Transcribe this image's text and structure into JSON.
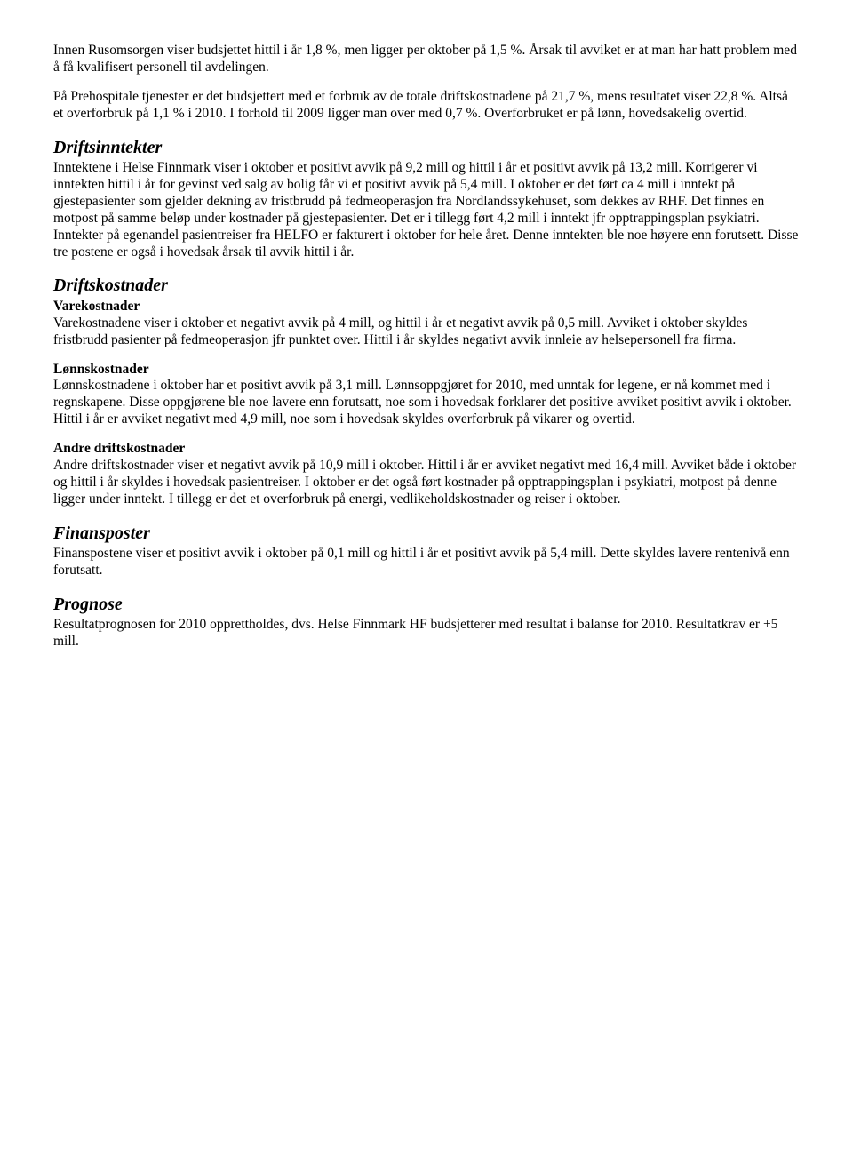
{
  "intro": {
    "p1": "Innen Rusomsorgen viser budsjettet hittil i år 1,8 %, men ligger per oktober på 1,5 %. Årsak til avviket er at man har hatt problem med å få kvalifisert personell til avdelingen.",
    "p2": "På Prehospitale tjenester er det budsjettert med et forbruk av de totale driftskostnadene på 21,7 %, mens resultatet viser 22,8 %. Altså et overforbruk på 1,1 % i 2010. I forhold til 2009 ligger man over med 0,7 %. Overforbruket er på lønn, hovedsakelig overtid."
  },
  "driftsinntekter": {
    "heading": "Driftsinntekter",
    "p1": "Inntektene i Helse Finnmark viser i oktober et positivt avvik på 9,2 mill og hittil i år et positivt avvik på 13,2 mill. Korrigerer vi inntekten hittil i år for gevinst ved salg av bolig får vi et positivt avvik på 5,4 mill. I oktober er det ført ca 4 mill i inntekt på gjestepasienter som gjelder dekning av fristbrudd på fedmeoperasjon fra Nordlandssykehuset, som dekkes av RHF. Det finnes en motpost på samme beløp under kostnader på gjestepasienter. Det er i tillegg ført 4,2 mill i inntekt jfr opptrappingsplan psykiatri. Inntekter på egenandel pasientreiser fra HELFO er fakturert i oktober for hele året. Denne inntekten ble noe høyere enn forutsett. Disse tre postene er også i hovedsak årsak til avvik hittil i år."
  },
  "driftskostnader": {
    "heading": "Driftskostnader",
    "varekostnader": {
      "title": "Varekostnader",
      "p1": "Varekostnadene viser i oktober et negativt avvik på 4 mill, og hittil i år et negativt avvik på 0,5 mill. Avviket i oktober skyldes fristbrudd pasienter på fedmeoperasjon jfr punktet over. Hittil i år skyldes negativt avvik innleie av helsepersonell fra firma."
    },
    "lonnskostnader": {
      "title": "Lønnskostnader",
      "p1": "Lønnskostnadene i oktober har et positivt avvik på 3,1 mill. Lønnsoppgjøret for 2010, med unntak for legene, er nå kommet med i regnskapene. Disse oppgjørene ble noe lavere enn forutsatt, noe som i hovedsak forklarer det positive avviket positivt avvik i oktober.",
      "p2": "Hittil i år er avviket negativt med 4,9 mill, noe som i hovedsak skyldes overforbruk på vikarer og overtid."
    },
    "andre": {
      "title": "Andre driftskostnader",
      "p1": "Andre driftskostnader viser et negativt avvik på 10,9 mill i oktober. Hittil i år er avviket negativt med 16,4 mill. Avviket både i oktober og hittil i år skyldes i hovedsak pasientreiser. I oktober er det også ført kostnader på opptrappingsplan i psykiatri, motpost på denne ligger under inntekt. I tillegg er det et overforbruk på energi, vedlikeholdskostnader og reiser i oktober."
    }
  },
  "finansposter": {
    "heading": "Finansposter",
    "p1": "Finanspostene viser et positivt avvik i oktober på 0,1 mill og hittil i år et positivt avvik på 5,4 mill. Dette skyldes lavere rentenivå enn forutsatt."
  },
  "prognose": {
    "heading": "Prognose",
    "p1": "Resultatprognosen for 2010 opprettholdes, dvs. Helse Finnmark HF budsjetterer med resultat i balanse for 2010. Resultatkrav er +5 mill."
  }
}
